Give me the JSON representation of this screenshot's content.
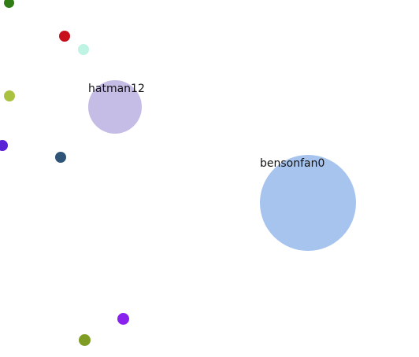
{
  "players": [
    {
      "name": "hatman12",
      "color": "#c6bde6"
    },
    {
      "name": "bensonfan0",
      "color": "#a7c4ef"
    }
  ],
  "food_pellets": [
    {
      "color": "#2f7d14"
    },
    {
      "color": "#c80f1c"
    },
    {
      "color": "#bff3e3"
    },
    {
      "color": "#a9c23f"
    },
    {
      "color": "#5a22d6"
    },
    {
      "color": "#2e5578"
    },
    {
      "color": "#8a22ee"
    },
    {
      "color": "#7f9d25"
    }
  ]
}
